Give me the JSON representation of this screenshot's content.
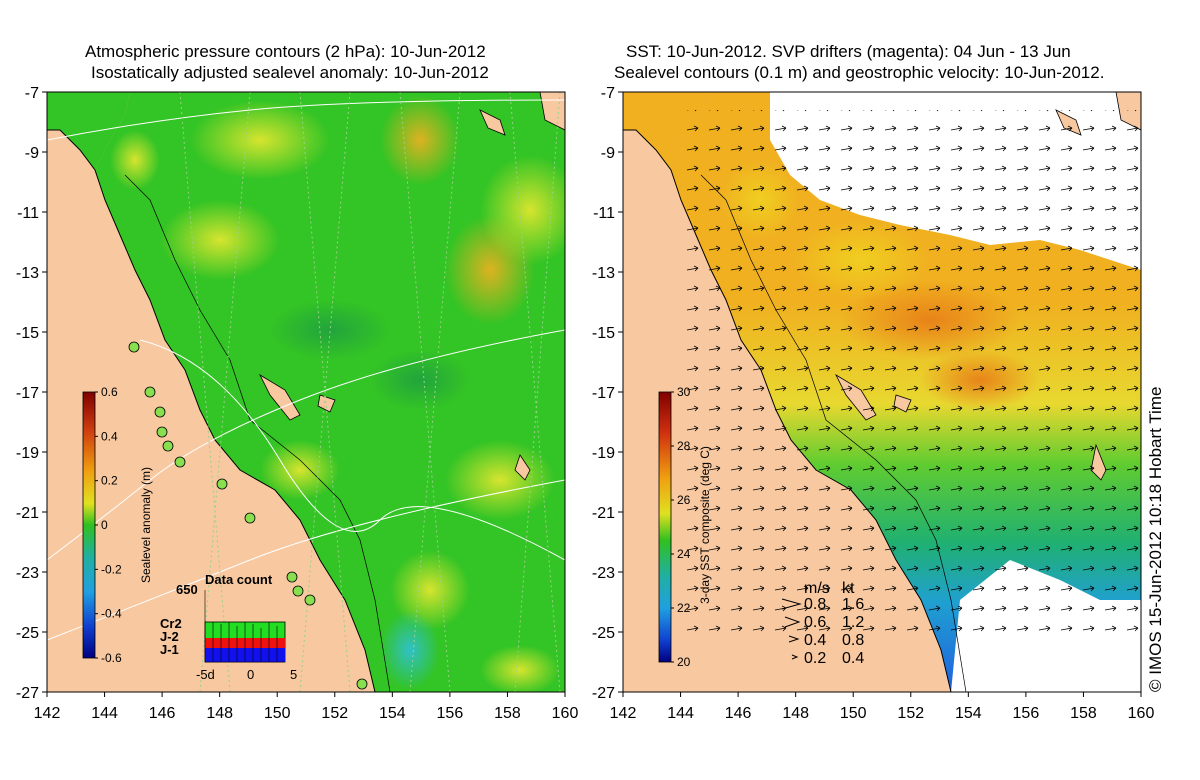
{
  "left_panel": {
    "title_line1": "Atmospheric pressure contours (2 hPa): 10-Jun-2012",
    "title_line2": "Isostatically adjusted sealevel anomaly: 10-Jun-2012",
    "colorbar": {
      "label": "Sealevel anomaly (m)",
      "ticks": [
        "0.6",
        "0.4",
        "0.2",
        "0",
        "-0.2",
        "-0.4",
        "-0.6"
      ],
      "range": [
        -0.6,
        0.6
      ]
    },
    "data_count": {
      "title": "Data count",
      "max_label": "650",
      "legend": [
        {
          "name": "Cr2",
          "color": "#22dd22"
        },
        {
          "name": "J-2",
          "color": "#ee1111"
        },
        {
          "name": "J-1",
          "color": "#1111ee"
        }
      ],
      "x_ticks": [
        "-5d",
        "0",
        "5"
      ]
    }
  },
  "right_panel": {
    "title_line1": "SST: 10-Jun-2012. SVP drifters (magenta): 04 Jun - 13 Jun",
    "title_line2": "Sealevel contours (0.1 m) and geostrophic velocity: 10-Jun-2012.",
    "colorbar": {
      "label": "3-day SST composite (deg C)",
      "ticks": [
        "30",
        "28",
        "26",
        "24",
        "22",
        "20"
      ],
      "range": [
        20,
        30
      ]
    },
    "speed_legend": {
      "headers": [
        "m/s",
        "kt"
      ],
      "rows": [
        [
          "0.8",
          "1.6"
        ],
        [
          "0.6",
          "1.2"
        ],
        [
          "0.4",
          "0.8"
        ],
        [
          "0.2",
          "0.4"
        ]
      ]
    },
    "credit": "© IMOS 15-Jun-2012 10:18 Hobart Time"
  },
  "axes": {
    "x_ticks": [
      "142",
      "144",
      "146",
      "148",
      "150",
      "152",
      "154",
      "156",
      "158",
      "160"
    ],
    "y_ticks": [
      "-7",
      "-9",
      "-11",
      "-13",
      "-15",
      "-17",
      "-19",
      "-21",
      "-23",
      "-25",
      "-27"
    ],
    "lon_range": [
      142,
      160
    ],
    "lat_range": [
      -27,
      -7
    ]
  },
  "colors": {
    "land": "#f8c8a0",
    "sea_green": "#33cc22",
    "sst_orange": "#f0a010"
  }
}
